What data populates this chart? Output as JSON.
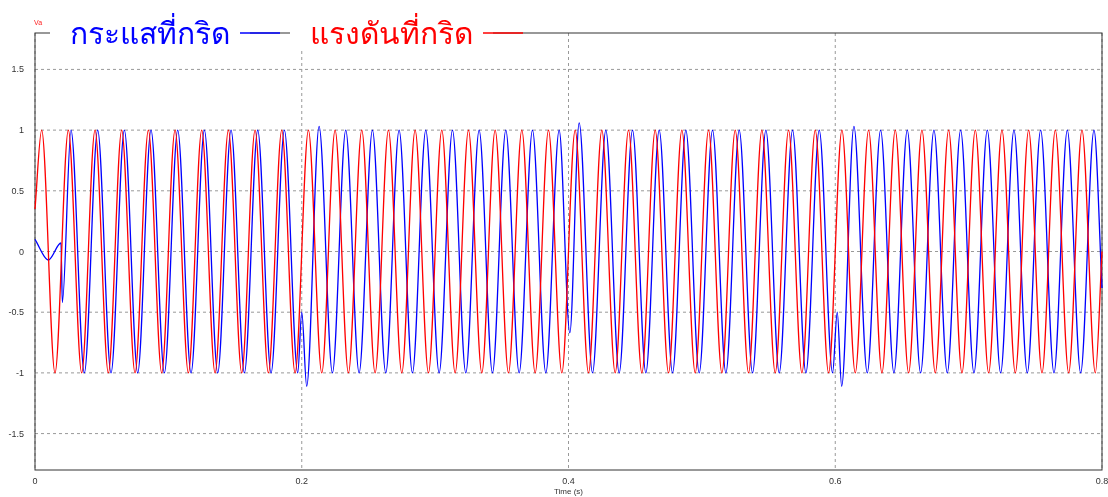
{
  "chart_data": {
    "type": "line",
    "ylabel": "Va",
    "xlabel": "Time (s)",
    "xlim": [
      0,
      0.8
    ],
    "xticks": [
      0,
      0.2,
      0.4,
      0.6,
      0.8
    ],
    "ylim": [
      -1.8,
      1.8
    ],
    "yticks": [
      -1.5,
      -1,
      -0.5,
      0,
      0.5,
      1,
      1.5
    ],
    "grid": true,
    "legend": "top left",
    "series": [
      {
        "name": "กระแสที่กริด",
        "color": "#0000ff",
        "x": [
          0,
          0.01,
          0.0195,
          0.0205,
          0.027,
          0.037,
          0.047,
          0.057,
          0.067,
          0.077,
          0.087,
          0.097,
          0.107,
          0.117,
          0.127,
          0.137,
          0.147,
          0.157,
          0.167,
          0.177,
          0.187,
          0.197,
          0.2,
          0.2037,
          0.213,
          0.223,
          0.233,
          0.243,
          0.253,
          0.263,
          0.273,
          0.283,
          0.293,
          0.303,
          0.313,
          0.323,
          0.333,
          0.343,
          0.353,
          0.363,
          0.373,
          0.383,
          0.393,
          0.401,
          0.408,
          0.418,
          0.428,
          0.438,
          0.448,
          0.458,
          0.468,
          0.478,
          0.488,
          0.498,
          0.508,
          0.518,
          0.528,
          0.538,
          0.548,
          0.558,
          0.568,
          0.578,
          0.588,
          0.598,
          0.6015,
          0.6048,
          0.614,
          0.624,
          0.634,
          0.644,
          0.654,
          0.664,
          0.674,
          0.684,
          0.694,
          0.704,
          0.714,
          0.724,
          0.734,
          0.744,
          0.754,
          0.764,
          0.774,
          0.784,
          0.794,
          0.8
        ],
        "values": [
          0.1,
          -0.07,
          0.07,
          -0.42,
          1,
          -1,
          1,
          -1,
          1,
          -1,
          1,
          -1,
          1,
          -1,
          1,
          -1,
          1,
          -1,
          1,
          -1,
          1,
          -1,
          -0.5,
          -1.11,
          1.03,
          -1,
          1,
          -1,
          1,
          -1,
          1,
          -1,
          1,
          -1,
          1,
          -1,
          1,
          -1,
          1,
          -1,
          1,
          -1,
          1,
          -0.67,
          1.06,
          -1,
          1,
          -1,
          1,
          -1,
          1,
          -1,
          1,
          -1,
          1,
          -1,
          1,
          -1,
          1,
          -1,
          1,
          -1,
          1,
          -1,
          -0.5,
          -1.11,
          1.03,
          -1,
          1,
          -1,
          1,
          -1,
          1,
          -1,
          1,
          -1,
          1,
          -1,
          1,
          -1,
          1,
          -1,
          1,
          -1,
          1,
          -0.3
        ]
      },
      {
        "name": "แรงดันที่กริด",
        "color": "#ff0000",
        "x": [
          0,
          0.005,
          0.015,
          0.025,
          0.035,
          0.045,
          0.055,
          0.065,
          0.075,
          0.085,
          0.095,
          0.105,
          0.115,
          0.125,
          0.135,
          0.145,
          0.155,
          0.165,
          0.175,
          0.185,
          0.195,
          0.205,
          0.215,
          0.225,
          0.235,
          0.245,
          0.255,
          0.265,
          0.275,
          0.285,
          0.295,
          0.305,
          0.315,
          0.325,
          0.335,
          0.345,
          0.355,
          0.365,
          0.375,
          0.385,
          0.395,
          0.405,
          0.415,
          0.425,
          0.435,
          0.445,
          0.455,
          0.465,
          0.475,
          0.485,
          0.495,
          0.505,
          0.515,
          0.525,
          0.535,
          0.545,
          0.555,
          0.565,
          0.575,
          0.585,
          0.595,
          0.605,
          0.615,
          0.625,
          0.635,
          0.645,
          0.655,
          0.665,
          0.675,
          0.685,
          0.695,
          0.705,
          0.715,
          0.725,
          0.735,
          0.745,
          0.755,
          0.765,
          0.775,
          0.785,
          0.795,
          0.8
        ],
        "values": [
          0.35,
          1,
          -1,
          1,
          -1,
          1,
          -1,
          1,
          -1,
          1,
          -1,
          1,
          -1,
          1,
          -1,
          1,
          -1,
          1,
          -1,
          1,
          -1,
          1,
          -1,
          1,
          -1,
          1,
          -1,
          1,
          -1,
          1,
          -1,
          1,
          -1,
          1,
          -1,
          1,
          -1,
          1,
          -1,
          1,
          -1,
          1,
          -1,
          1,
          -1,
          1,
          -1,
          1,
          -1,
          1,
          -1,
          1,
          -1,
          1,
          -1,
          1,
          -1,
          1,
          -1,
          1,
          -1,
          1,
          -1,
          1,
          -1,
          1,
          -1,
          1,
          -1,
          1,
          -1,
          1,
          -1,
          1,
          -1,
          1,
          -1,
          1,
          -1,
          1,
          -1,
          0
        ]
      }
    ]
  }
}
